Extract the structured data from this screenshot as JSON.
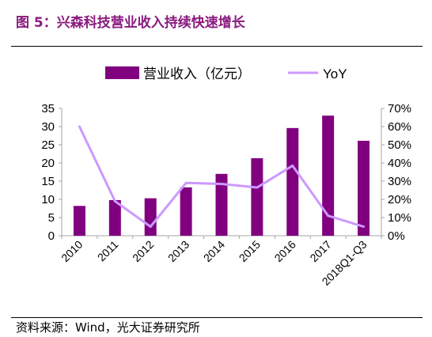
{
  "figure": {
    "title": "图 5：兴森科技营业收入持续快速增长",
    "source": "资料来源：Wind，光大证券研究所"
  },
  "colors": {
    "bar": "#800080",
    "line": "#cc99ff",
    "title": "#8a1a7e",
    "axis": "#a6a6a6",
    "text": "#000000"
  },
  "chart_data": {
    "type": "bar",
    "categories": [
      "2010",
      "2011",
      "2012",
      "2013",
      "2014",
      "2015",
      "2016",
      "2017",
      "2018Q1-Q3"
    ],
    "series": [
      {
        "name": "营业收入（亿元）",
        "type": "bar",
        "axis": "left",
        "values": [
          8.2,
          9.8,
          10.3,
          13.3,
          17.0,
          21.3,
          29.6,
          33.0,
          26.1
        ]
      },
      {
        "name": "YoY",
        "type": "line",
        "axis": "right",
        "values": [
          0.6,
          0.19,
          0.05,
          0.29,
          0.285,
          0.265,
          0.385,
          0.11,
          0.05
        ]
      }
    ],
    "y_left": {
      "min": 0,
      "max": 35,
      "ticks": [
        "0",
        "5",
        "10",
        "15",
        "20",
        "25",
        "30",
        "35"
      ]
    },
    "y_right": {
      "min": 0,
      "max": 0.7,
      "ticks": [
        "0%",
        "10%",
        "20%",
        "30%",
        "40%",
        "50%",
        "60%",
        "70%"
      ]
    },
    "grid": false,
    "legend": "top"
  }
}
